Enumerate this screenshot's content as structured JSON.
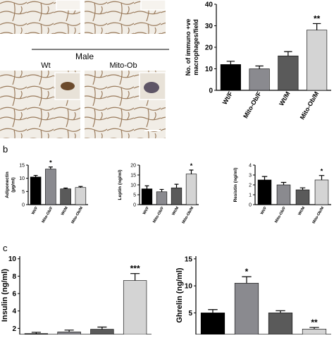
{
  "chart_data": [
    {
      "type": "bar",
      "ylabel": [
        "No. of immuno +ve",
        "macrophages/field"
      ],
      "categories": [
        "Wt/F",
        "Mito-Ob/F",
        "Wt/M",
        "Mito-Ob/M"
      ],
      "values": [
        12,
        10,
        16,
        28
      ],
      "errors": [
        1.5,
        1.3,
        2,
        3
      ],
      "colors": [
        "#000000",
        "#8a8a8f",
        "#5a5a5a",
        "#d4d4d4"
      ],
      "ylim": [
        0,
        40
      ],
      "yticks": [
        0,
        10,
        20,
        30,
        40
      ],
      "annotations": [
        {
          "text": "**",
          "category": "Mito-Ob/M"
        }
      ]
    },
    {
      "type": "bar",
      "ylabel": [
        "Adiponectin",
        "(µg/ml)"
      ],
      "categories": [
        "Wt/F",
        "Mito-Ob/F",
        "Wt/M",
        "Mito-Ob/M"
      ],
      "values": [
        10.5,
        13.5,
        6,
        6.5
      ],
      "errors": [
        0.6,
        0.8,
        0.3,
        0.4
      ],
      "colors": [
        "#000000",
        "#8a8a8f",
        "#5a5a5a",
        "#d4d4d4"
      ],
      "ylim": [
        0,
        15
      ],
      "yticks": [
        0,
        5,
        10,
        15
      ],
      "annotations": [
        {
          "text": "*",
          "category": "Mito-Ob/F"
        }
      ]
    },
    {
      "type": "bar",
      "ylabel": [
        "Leptin (ng/ml)"
      ],
      "categories": [
        "Wt/F",
        "Mito-Ob/F",
        "Wt/M",
        "Mito-Ob/M"
      ],
      "values": [
        8,
        6.5,
        8.5,
        15.5
      ],
      "errors": [
        1.5,
        1.2,
        1.8,
        2
      ],
      "colors": [
        "#000000",
        "#8a8a8f",
        "#5a5a5a",
        "#d4d4d4"
      ],
      "ylim": [
        0,
        20
      ],
      "yticks": [
        0,
        5,
        10,
        15,
        20
      ],
      "annotations": [
        {
          "text": "*",
          "category": "Mito-Ob/M"
        }
      ]
    },
    {
      "type": "bar",
      "ylabel": [
        "Resistin (ng/ml)"
      ],
      "categories": [
        "Wt/F",
        "Mito-Ob/F",
        "Wt/M",
        "Mito-Ob/M"
      ],
      "values": [
        2.5,
        2,
        1.5,
        2.5
      ],
      "errors": [
        0.35,
        0.25,
        0.2,
        0.45
      ],
      "colors": [
        "#000000",
        "#8a8a8f",
        "#5a5a5a",
        "#d4d4d4"
      ],
      "ylim": [
        0,
        4
      ],
      "yticks": [
        0,
        1,
        2,
        3,
        4
      ],
      "annotations": [
        {
          "text": "*",
          "category": "Mito-Ob/M"
        }
      ]
    },
    {
      "type": "bar",
      "ylabel": [
        "Insulin (ng/ml)"
      ],
      "values": [
        1.4,
        1.6,
        1.9,
        7.5
      ],
      "errors": [
        0.15,
        0.2,
        0.25,
        0.8
      ],
      "colors": [
        "#000000",
        "#8a8a8f",
        "#5a5a5a",
        "#d4d4d4"
      ],
      "ylim": [
        1.3,
        10.3
      ],
      "yticks": [
        2,
        4,
        6,
        8,
        10
      ],
      "annotations": [
        {
          "text": "***",
          "bar": 3
        }
      ]
    },
    {
      "type": "bar",
      "ylabel": [
        "Ghrelin (ng/ml)"
      ],
      "values": [
        5,
        10.5,
        5,
        2
      ],
      "errors": [
        0.6,
        1.2,
        0.4,
        0.3
      ],
      "colors": [
        "#000000",
        "#8a8a8f",
        "#5a5a5a",
        "#d4d4d4"
      ],
      "ylim": [
        1,
        15.5
      ],
      "yticks": [
        5,
        10,
        15
      ],
      "annotations": [
        {
          "text": "*",
          "bar": 1
        },
        {
          "text": "**",
          "bar": 3
        }
      ]
    }
  ],
  "figure": {
    "panel_b": "b",
    "panel_c": "c",
    "group": "Male",
    "left_image": "Wt",
    "right_image": "Mito-Ob"
  }
}
